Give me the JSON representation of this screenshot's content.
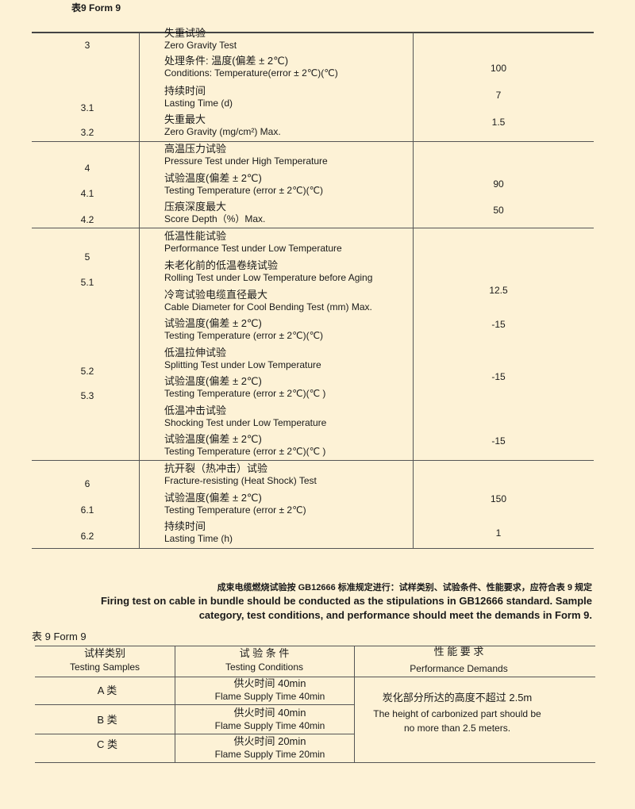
{
  "top_caption": "表9   Form 9",
  "sections": [
    {
      "nums": [
        "3",
        "3.1",
        "3.2"
      ],
      "rows": [
        [
          "失重试验",
          "Zero Gravity Test"
        ],
        [
          "处理条件:  温度(偏差 ± 2℃)",
          "Conditions: Temperature(error  ± 2℃)(℃)"
        ],
        [
          "持续时间",
          "Lasting Time (d)"
        ],
        [
          "失重最大",
          "Zero Gravity (mg/cm²) Max."
        ]
      ],
      "values": [
        "100",
        "7",
        "1.5"
      ]
    },
    {
      "nums": [
        "4",
        "4.1",
        "4.2"
      ],
      "rows": [
        [
          "高温压力试验",
          "Pressure Test under High Temperature"
        ],
        [
          "试验温度(偏差 ± 2℃)",
          "Testing Temperature (error ± 2℃)(℃)"
        ],
        [
          "压痕深度最大",
          "Score Depth（%）Max."
        ]
      ],
      "values": [
        "90",
        "50"
      ]
    },
    {
      "nums": [
        "5",
        "5.1",
        "5.2",
        "5.3"
      ],
      "rows": [
        [
          "低温性能试验",
          "Performance Test under Low Temperature"
        ],
        [
          "未老化前的低温卷绕试验",
          "Rolling Test under Low Temperature before Aging"
        ],
        [
          "冷弯试验电缆直径最大",
          "Cable Diameter for Cool Bending Test (mm) Max."
        ],
        [
          "试验温度(偏差 ± 2℃)",
          "Testing Temperature (error ± 2℃)(℃)"
        ],
        [
          "低温拉伸试验",
          "Splitting Test under Low Temperature"
        ],
        [
          "试验温度(偏差 ± 2℃)",
          "Testing Temperature (error ± 2℃)(℃ )"
        ],
        [
          "低温冲击试验",
          "Shocking Test under Low Temperature"
        ],
        [
          "试验温度(偏差 ± 2℃)",
          "Testing Temperature (error ± 2℃)(℃ )"
        ]
      ],
      "values": [
        "12.5",
        "-15",
        "-15",
        "-15"
      ]
    },
    {
      "nums": [
        "6",
        "6.1",
        "6.2"
      ],
      "rows": [
        [
          "抗开裂（热冲击）试验",
          "Fracture-resisting (Heat Shock) Test"
        ],
        [
          "试验温度(偏差 ± 2℃)",
          "Testing Temperature (error ± 2℃)"
        ],
        [
          "持续时间",
          "Lasting Time (h)"
        ]
      ],
      "values": [
        "150",
        "1"
      ]
    }
  ],
  "note": {
    "cn": "成束电缆燃烧试验按 GB12666 标准规定进行：试样类别、试验条件、性能要求，应符合表 9 规定",
    "en1": "Firing test on cable in bundle should be conducted as the stipulations in GB12666 standard. Sample",
    "en2": "category, test conditions, and performance should meet the demands in Form 9."
  },
  "form9": {
    "caption": "表 9  Form 9",
    "headers": [
      [
        "试样类别",
        "Testing Samples"
      ],
      [
        "试 验 条 件",
        "Testing Conditions"
      ],
      [
        "性 能 要 求",
        "Performance Demands"
      ]
    ],
    "rows": [
      {
        "sample": "A 类",
        "cn": "供火时间 40min",
        "en": "Flame Supply Time 40min"
      },
      {
        "sample": "B 类",
        "cn": "供火时间 40min",
        "en": "Flame Supply Time 40min"
      },
      {
        "sample": "C 类",
        "cn": "供火时间 20min",
        "en": "Flame Supply Time 20min"
      }
    ],
    "demand": {
      "cn": "炭化部分所达的高度不超过 2.5m",
      "en1": "The height of carbonized part should be",
      "en2": "no more than 2.5 meters."
    }
  }
}
